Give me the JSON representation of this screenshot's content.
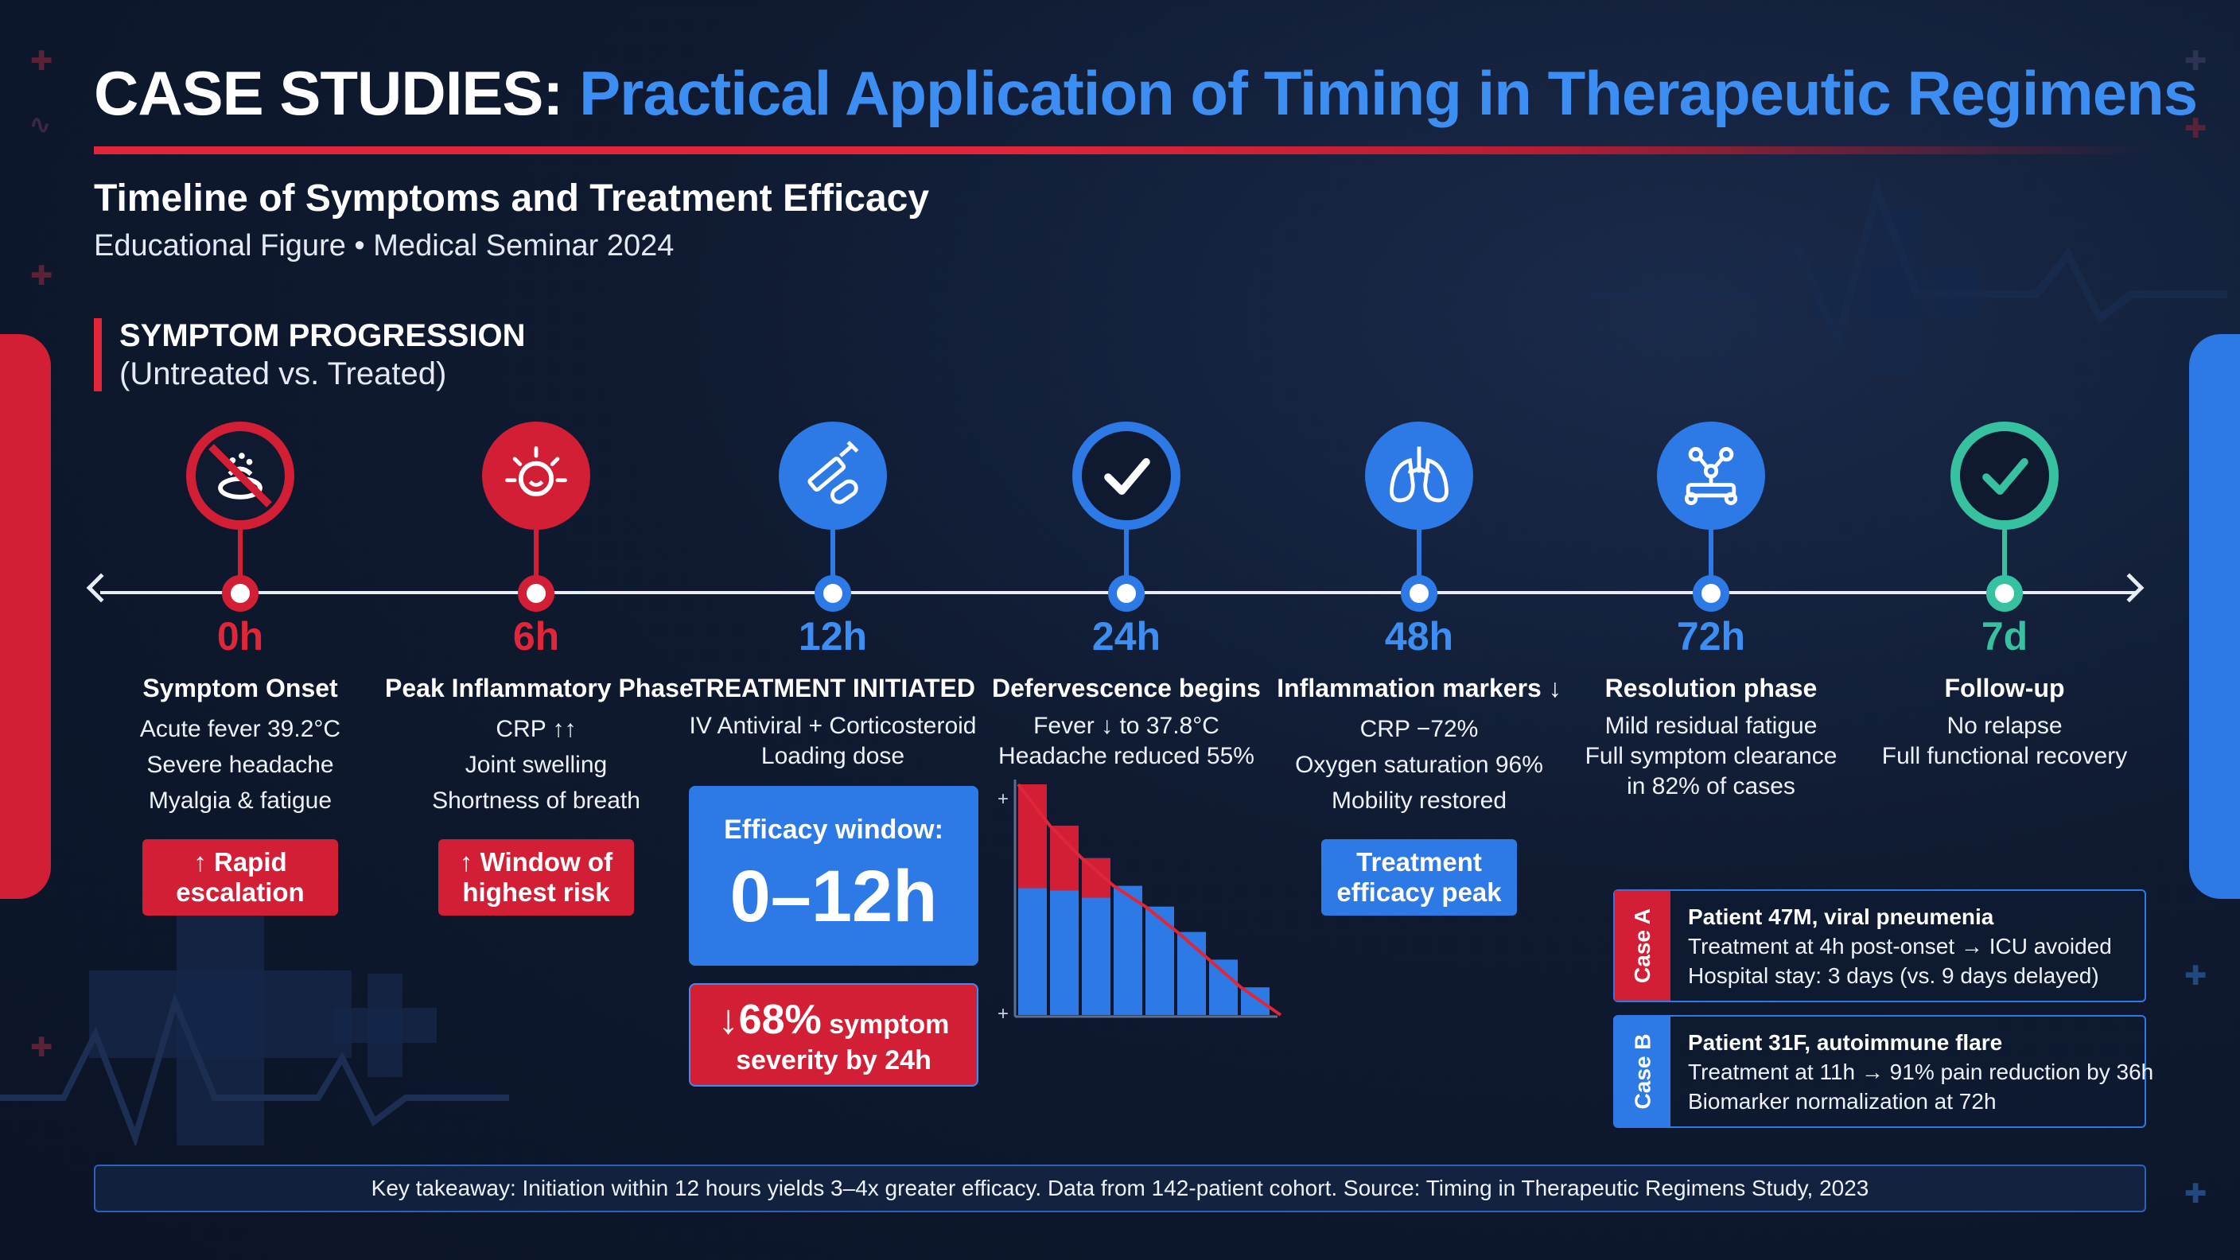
{
  "header": {
    "title_prefix": "CASE STUDIES:",
    "title_accent": "Practical Application of Timing in Therapeutic Regimens",
    "subtitle": "Timeline of Symptoms and Treatment Efficacy",
    "subline": "Educational Figure • Medical Seminar 2024"
  },
  "section": {
    "title": "SYMPTOM PROGRESSION",
    "subtitle": "(Untreated vs. Treated)"
  },
  "colors": {
    "red": "#d31f35",
    "blue": "#2d7ae6",
    "green": "#36c2a0",
    "background": "#0f1a30"
  },
  "timeline": [
    {
      "time": "0h",
      "heading": "Symptom Onset",
      "lines": [
        "Acute fever 39.2°C",
        "Severe headache",
        "Myalgia & fatigue"
      ],
      "badge": "↑ Rapid escalation",
      "icon": "no-fever-icon"
    },
    {
      "time": "6h",
      "heading": "Peak Inflammatory Phase",
      "lines": [
        "CRP ↑↑",
        "Joint swelling",
        "Shortness of breath"
      ],
      "badge": "↑ Window of highest risk",
      "icon": "inflammation-icon"
    },
    {
      "time": "12h",
      "heading": "TREATMENT INITIATED",
      "lines": [
        "IV Antiviral + Corticosteroid",
        "Loading dose"
      ],
      "icon": "syringe-pill-icon"
    },
    {
      "time": "24h",
      "heading": "Defervescence begins",
      "lines": [
        "Fever ↓ to 37.8°C",
        "Headache reduced 55%"
      ],
      "icon": "checkmark-icon"
    },
    {
      "time": "48h",
      "heading": "Inflammation markers ↓",
      "lines": [
        "CRP −72%",
        "Oxygen saturation 96%",
        "Mobility restored"
      ],
      "badge": "Treatment efficacy peak",
      "icon": "lungs-icon"
    },
    {
      "time": "72h",
      "heading": "Resolution phase",
      "lines": [
        "Mild residual fatigue",
        "Full symptom clearance",
        "in 82% of cases"
      ],
      "icon": "molecule-icon"
    },
    {
      "time": "7d",
      "heading": "Follow-up",
      "lines": [
        "No relapse",
        "Full functional recovery"
      ],
      "icon": "check-circle-icon"
    }
  ],
  "efficacy": {
    "label": "Efficacy window:",
    "value": "0–12h",
    "reduction_arrow": "↓",
    "reduction_value": "68%",
    "reduction_text": "symptom",
    "reduction_line2": "severity by 24h"
  },
  "mini_chart": {
    "bars_total": [
      100,
      82,
      68,
      56,
      47,
      36,
      24,
      12
    ],
    "bars_red_share": [
      1.0,
      0.76,
      0.56,
      0.0,
      0.0,
      0.0,
      0.0,
      0.0
    ],
    "plus": "+"
  },
  "cases": [
    {
      "tab": "Case A",
      "tab_color": "#d31f35",
      "title": "Patient 47M, viral pneumenia",
      "line1": "Treatment at 4h post-onset → ICU avoided",
      "line2": "Hospital stay: 3 days (vs. 9 days delayed)"
    },
    {
      "tab": "Case B",
      "tab_color": "#2d7ae6",
      "title": "Patient 31F, autoimmune flare",
      "line1": "Treatment at 11h → 91% pain reduction by 36h",
      "line2": "Biomarker normalization at 72h"
    }
  ],
  "footer": "Key takeaway: Initiation within 12 hours yields 3–4x greater efficacy. Data from 142-patient cohort. Source: Timing in Therapeutic Regimens Study, 2023"
}
